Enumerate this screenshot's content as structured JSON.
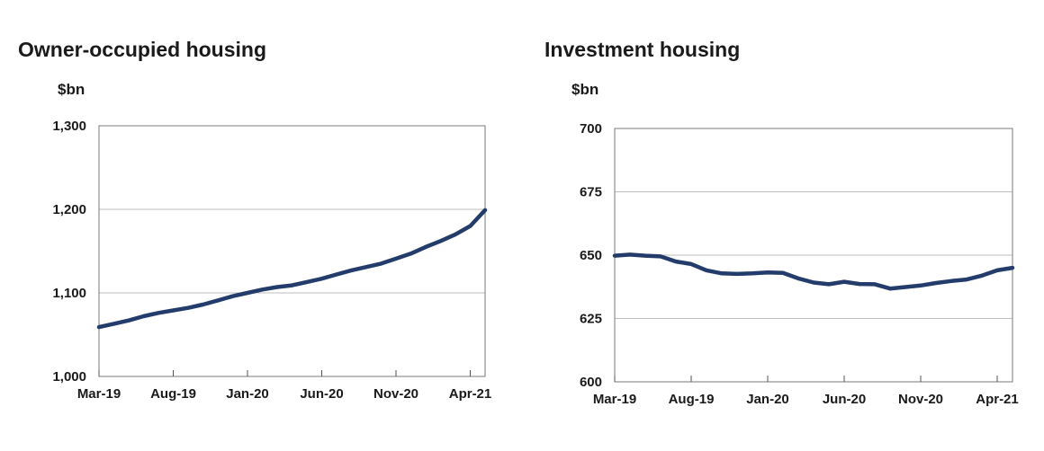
{
  "chart_data": [
    {
      "type": "line",
      "title": "Owner-occupied housing",
      "ylabel": "$bn",
      "ylim": [
        1000,
        1300
      ],
      "yticks": [
        1000,
        1100,
        1200,
        1300
      ],
      "ytick_labels": [
        "1,000",
        "1,100",
        "1,200",
        "1,300"
      ],
      "xticks": [
        "Mar-19",
        "Aug-19",
        "Jan-20",
        "Jun-20",
        "Nov-20",
        "Apr-21"
      ],
      "grid": true,
      "line_color": "#233c6b",
      "x": [
        "Mar-19",
        "Apr-19",
        "May-19",
        "Jun-19",
        "Jul-19",
        "Aug-19",
        "Sep-19",
        "Oct-19",
        "Nov-19",
        "Dec-19",
        "Jan-20",
        "Feb-20",
        "Mar-20",
        "Apr-20",
        "May-20",
        "Jun-20",
        "Jul-20",
        "Aug-20",
        "Sep-20",
        "Oct-20",
        "Nov-20",
        "Dec-20",
        "Jan-21",
        "Feb-21",
        "Mar-21",
        "Apr-21",
        "May-21"
      ],
      "series": [
        {
          "name": "",
          "values": [
            1059,
            1063,
            1067,
            1072,
            1076,
            1079,
            1082,
            1086,
            1091,
            1096,
            1100,
            1104,
            1107,
            1109,
            1113,
            1117,
            1122,
            1127,
            1131,
            1135,
            1141,
            1147,
            1155,
            1162,
            1170,
            1180,
            1199
          ]
        }
      ]
    },
    {
      "type": "line",
      "title": "Investment housing",
      "ylabel": "$bn",
      "ylim": [
        600,
        700
      ],
      "yticks": [
        600,
        625,
        650,
        675,
        700
      ],
      "ytick_labels": [
        "600",
        "625",
        "650",
        "675",
        "700"
      ],
      "xticks": [
        "Mar-19",
        "Aug-19",
        "Jan-20",
        "Jun-20",
        "Nov-20",
        "Apr-21"
      ],
      "grid": true,
      "line_color": "#233c6b",
      "x": [
        "Mar-19",
        "Apr-19",
        "May-19",
        "Jun-19",
        "Jul-19",
        "Aug-19",
        "Sep-19",
        "Oct-19",
        "Nov-19",
        "Dec-19",
        "Jan-20",
        "Feb-20",
        "Mar-20",
        "Apr-20",
        "May-20",
        "Jun-20",
        "Jul-20",
        "Aug-20",
        "Sep-20",
        "Oct-20",
        "Nov-20",
        "Dec-20",
        "Jan-21",
        "Feb-21",
        "Mar-21",
        "Apr-21",
        "May-21"
      ],
      "series": [
        {
          "name": "",
          "values": [
            649.8,
            650.2,
            649.8,
            649.5,
            647.5,
            646.5,
            644.0,
            642.8,
            642.6,
            642.8,
            643.2,
            643.0,
            640.8,
            639.2,
            638.5,
            639.5,
            638.6,
            638.5,
            636.8,
            637.4,
            638.0,
            639.0,
            639.8,
            640.4,
            641.9,
            644.0,
            645.0
          ]
        }
      ]
    }
  ]
}
